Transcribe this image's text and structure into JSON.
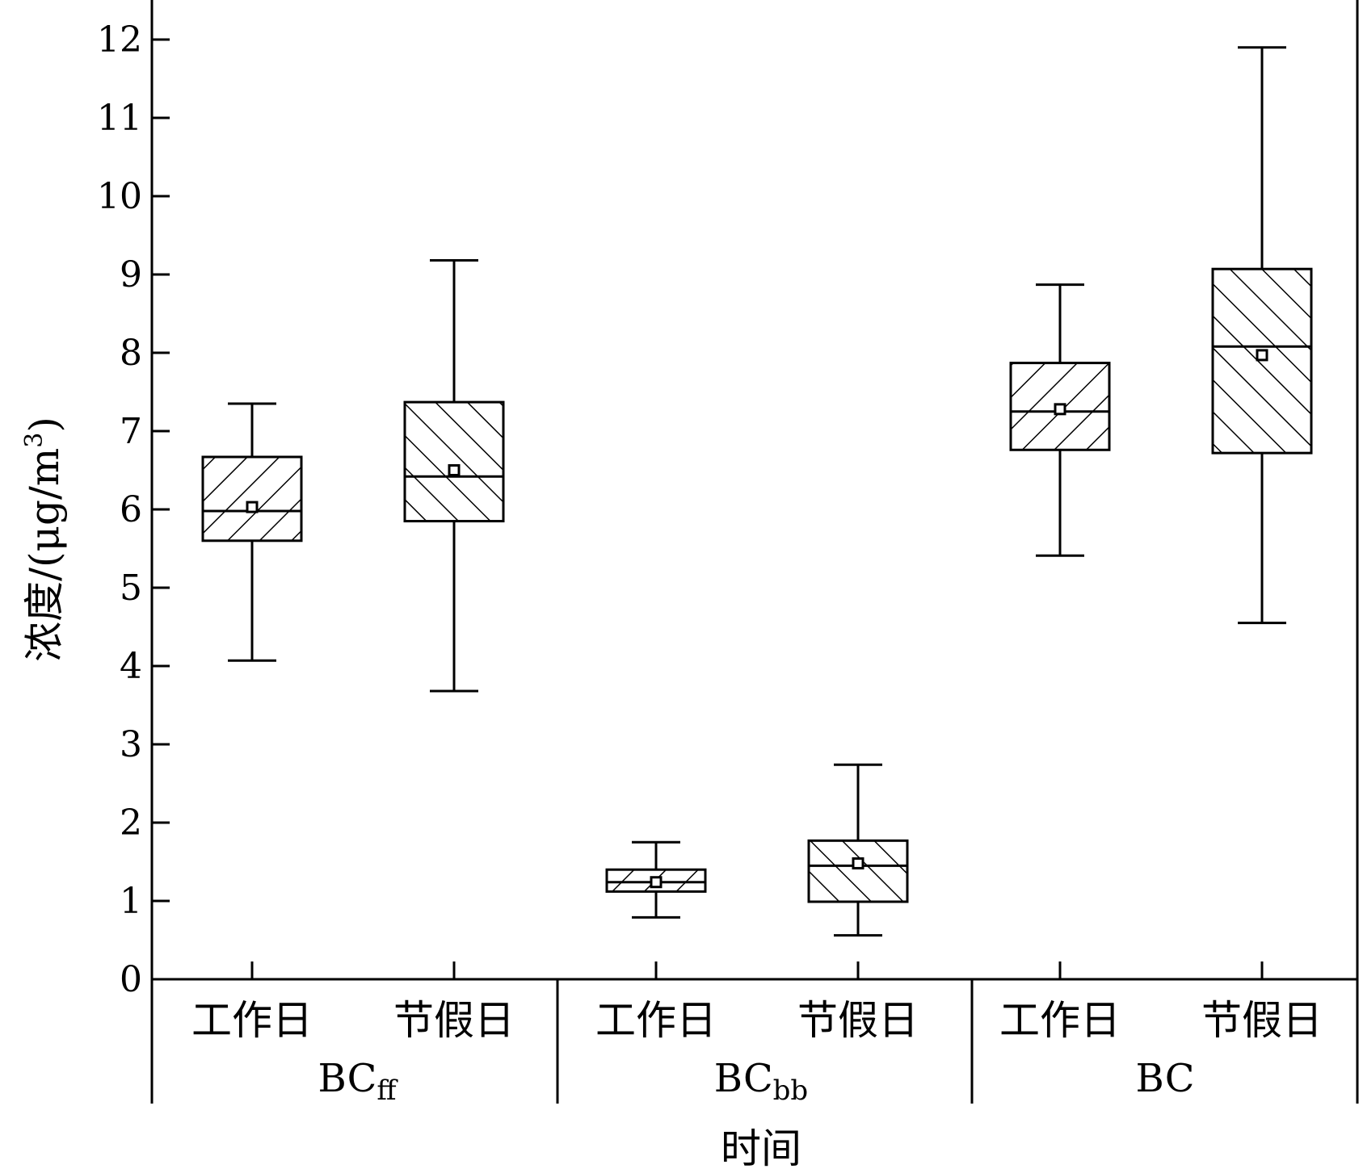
{
  "chart_data": {
    "type": "box",
    "ylabel": "浓度/(μg/m3)",
    "ylabel_parts": {
      "main": "浓度/(μg/m",
      "sup": "3",
      "close": ")"
    },
    "xlabel": "时间",
    "ylim": [
      0,
      12.5
    ],
    "yticks": [
      0,
      1,
      2,
      3,
      4,
      5,
      6,
      7,
      8,
      9,
      10,
      11,
      12
    ],
    "groups": [
      {
        "label_main": "BC",
        "label_sub": "ff"
      },
      {
        "label_main": "BC",
        "label_sub": "bb"
      },
      {
        "label_main": "BC",
        "label_sub": ""
      }
    ],
    "boxes": [
      {
        "group": 0,
        "category": "工作日",
        "whisker_low": 4.07,
        "q1": 5.6,
        "median": 5.98,
        "q3": 6.67,
        "whisker_high": 7.35,
        "mean": 6.03,
        "hatch": "forward"
      },
      {
        "group": 0,
        "category": "节假日",
        "whisker_low": 3.68,
        "q1": 5.85,
        "median": 6.42,
        "q3": 7.37,
        "whisker_high": 9.18,
        "mean": 6.5,
        "hatch": "back"
      },
      {
        "group": 1,
        "category": "工作日",
        "whisker_low": 0.79,
        "q1": 1.12,
        "median": 1.24,
        "q3": 1.4,
        "whisker_high": 1.75,
        "mean": 1.24,
        "hatch": "forward"
      },
      {
        "group": 1,
        "category": "节假日",
        "whisker_low": 0.56,
        "q1": 0.99,
        "median": 1.45,
        "q3": 1.77,
        "whisker_high": 2.74,
        "mean": 1.48,
        "hatch": "back"
      },
      {
        "group": 2,
        "category": "工作日",
        "whisker_low": 5.41,
        "q1": 6.76,
        "median": 7.25,
        "q3": 7.87,
        "whisker_high": 8.87,
        "mean": 7.28,
        "hatch": "forward"
      },
      {
        "group": 2,
        "category": "节假日",
        "whisker_low": 4.55,
        "q1": 6.72,
        "median": 8.08,
        "q3": 9.07,
        "whisker_high": 11.9,
        "mean": 7.97,
        "hatch": "back"
      }
    ],
    "grid": false,
    "legend": "none"
  }
}
